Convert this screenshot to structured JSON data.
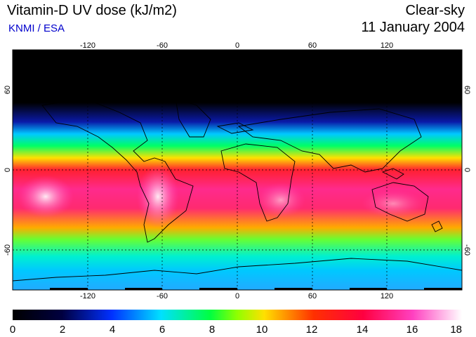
{
  "header": {
    "title": "Vitamin-D UV dose (kJ/m2)",
    "source": "KNMI / ESA",
    "condition": "Clear-sky",
    "date": "11 January 2004"
  },
  "map": {
    "lon_ticks": [
      "-120",
      "-60",
      "0",
      "60",
      "120"
    ],
    "lon_values": [
      -120,
      -60,
      0,
      60,
      120
    ],
    "lat_ticks": [
      "60",
      "0",
      "-60"
    ],
    "lat_values": [
      60,
      0,
      -60
    ],
    "gridlines": true
  },
  "colorbar": {
    "ticks": [
      "0",
      "2",
      "4",
      "6",
      "8",
      "10",
      "12",
      "14",
      "16",
      "18"
    ],
    "min": 0,
    "max": 18
  },
  "colors": {
    "source_text": "#0000cc",
    "band_dark": "#000000",
    "band_blue": "#0033ff",
    "band_cyan": "#00e5ff",
    "band_green": "#00ff44",
    "band_yellow": "#ffdd00",
    "band_red": "#ff1a3c",
    "band_magenta": "#ff2f9a",
    "band_white": "#ffe6ff"
  }
}
